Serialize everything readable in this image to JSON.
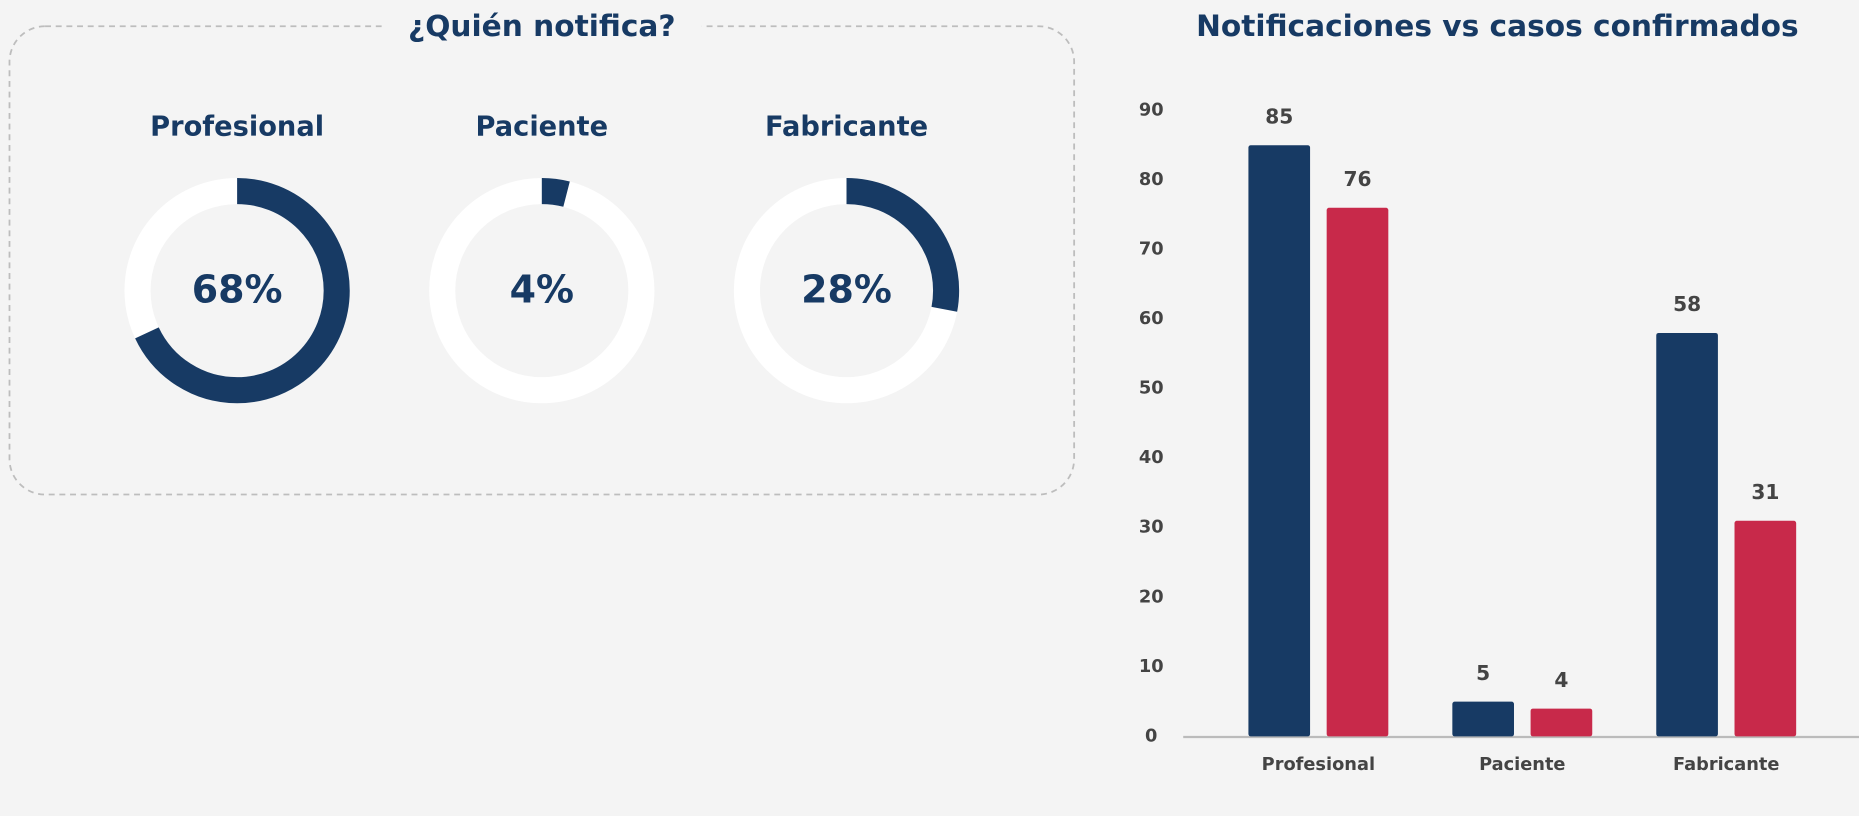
{
  "chart_data": [
    {
      "type": "donut",
      "title": "¿Quién notifica?",
      "categories": [
        "Profesional",
        "Paciente",
        "Fabricante"
      ],
      "values": [
        68,
        4,
        28
      ],
      "value_labels": [
        "68%",
        "4%",
        "28%"
      ],
      "color": "#173a64",
      "track_color": "#ffffff"
    },
    {
      "type": "bar",
      "title": "Notificaciones vs casos confirmados",
      "categories": [
        "Profesional",
        "Paciente",
        "Fabricante"
      ],
      "series": [
        {
          "color": "#173a64",
          "values": [
            85,
            5,
            58
          ]
        },
        {
          "color": "#c8294a",
          "values": [
            76,
            4,
            31
          ]
        }
      ],
      "ylim": [
        0,
        90
      ],
      "yticks": [
        0,
        10,
        20,
        30,
        40,
        50,
        60,
        70,
        80,
        90
      ],
      "grid": false
    }
  ]
}
